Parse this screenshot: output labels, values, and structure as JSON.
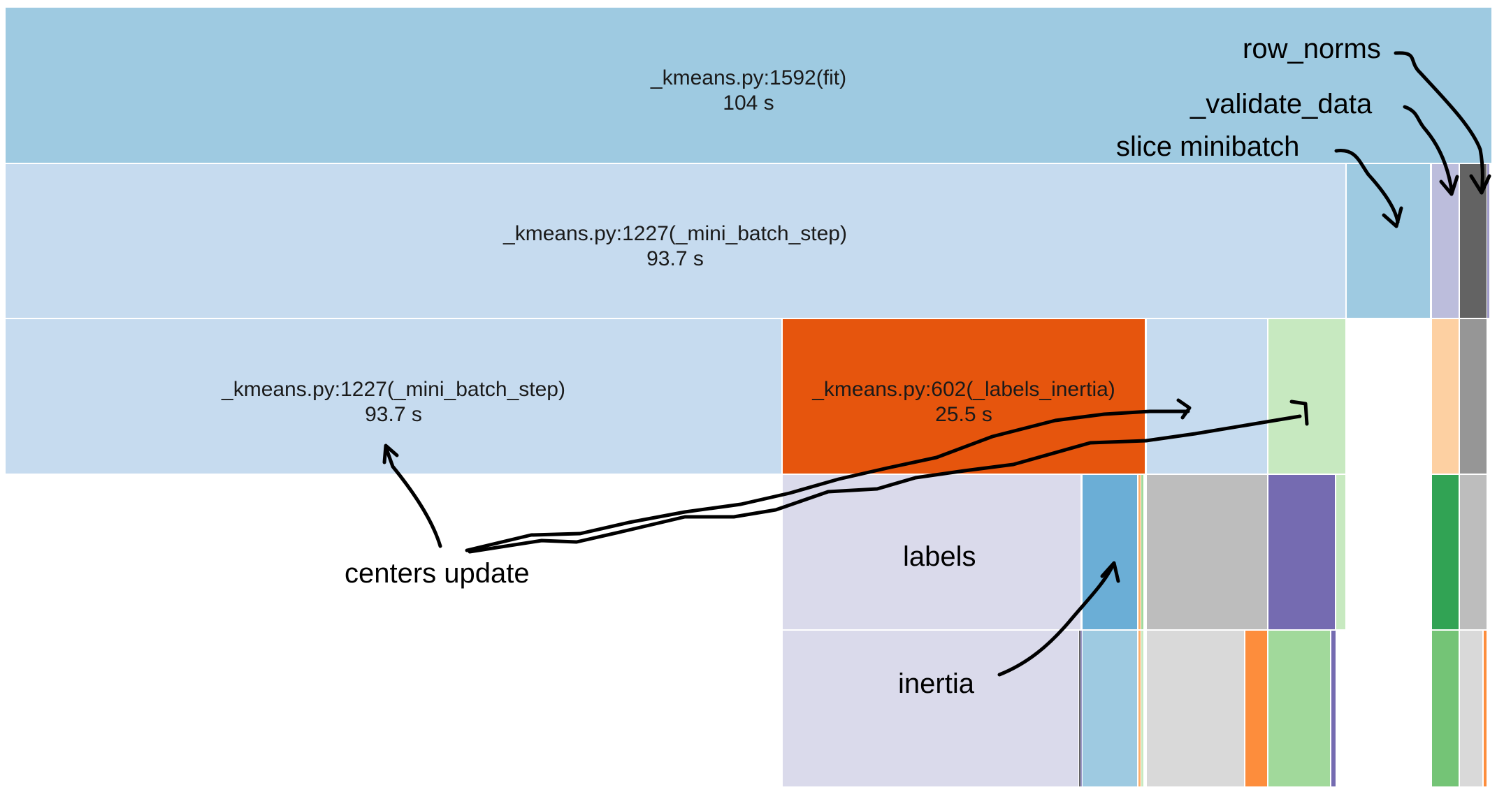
{
  "blocks": [
    {
      "name": "block-fit",
      "title": "_kmeans.py:1592(fit)",
      "value": "104 s",
      "color": "#9ecae1"
    },
    {
      "name": "block-mini-batch-step-1",
      "title": "_kmeans.py:1227(_mini_batch_step)",
      "value": "93.7 s",
      "color": "#c6dbef"
    },
    {
      "name": "block-slice-minibatch",
      "title": "",
      "value": "",
      "color": "#9ecae1"
    },
    {
      "name": "block-validate-data",
      "title": "",
      "value": "",
      "color": "#bcbddc"
    },
    {
      "name": "block-row-norms",
      "title": "",
      "value": "",
      "color": "#636363"
    },
    {
      "name": "block-mini-batch-step-2",
      "title": "_kmeans.py:1227(_mini_batch_step)",
      "value": "93.7 s",
      "color": "#c6dbef"
    },
    {
      "name": "block-labels-inertia",
      "title": "_kmeans.py:602(_labels_inertia)",
      "value": "25.5 s",
      "color": "#e6550d"
    },
    {
      "name": "block-level3-a",
      "title": "",
      "value": "",
      "color": "#c6dbef"
    },
    {
      "name": "block-level3-b",
      "title": "",
      "value": "",
      "color": "#c7e9c0"
    },
    {
      "name": "block-level3-c",
      "title": "",
      "value": "",
      "color": "#fdd0a2"
    },
    {
      "name": "block-level3-d",
      "title": "",
      "value": "",
      "color": "#969696"
    },
    {
      "name": "block-labels",
      "title": "",
      "value": "",
      "color": "#dadaeb"
    },
    {
      "name": "block-level4-a",
      "title": "",
      "value": "",
      "color": "#6baed6"
    },
    {
      "name": "block-level4-b",
      "title": "",
      "value": "",
      "color": "#bdbdbd"
    },
    {
      "name": "block-level4-c",
      "title": "",
      "value": "",
      "color": "#756bb1"
    },
    {
      "name": "block-level4-d",
      "title": "",
      "value": "",
      "color": "#c7e9c0"
    },
    {
      "name": "block-level4-e",
      "title": "",
      "value": "",
      "color": "#31a354"
    },
    {
      "name": "block-level4-f",
      "title": "",
      "value": "",
      "color": "#bdbdbd"
    },
    {
      "name": "block-inertia",
      "title": "",
      "value": "",
      "color": "#dadaeb"
    },
    {
      "name": "block-level5-a",
      "title": "",
      "value": "",
      "color": "#9ecae1"
    },
    {
      "name": "block-level5-b",
      "title": "",
      "value": "",
      "color": "#d9d9d9"
    },
    {
      "name": "block-level5-c",
      "title": "",
      "value": "",
      "color": "#fd8d3c"
    },
    {
      "name": "block-level5-d",
      "title": "",
      "value": "",
      "color": "#a1d99b"
    },
    {
      "name": "block-level5-e",
      "title": "",
      "value": "",
      "color": "#756bb1"
    },
    {
      "name": "block-level5-f",
      "title": "",
      "value": "",
      "color": "#74c476"
    },
    {
      "name": "block-level5-g",
      "title": "",
      "value": "",
      "color": "#d9d9d9"
    },
    {
      "name": "block-level5-h",
      "title": "",
      "value": "",
      "color": "#fd8d3c"
    }
  ],
  "annotations": {
    "row_norms": "row_norms",
    "validate_data": "_validate_data",
    "slice_minibatch": "slice minibatch",
    "centers_update": "centers update",
    "labels": "labels",
    "inertia": "inertia"
  }
}
